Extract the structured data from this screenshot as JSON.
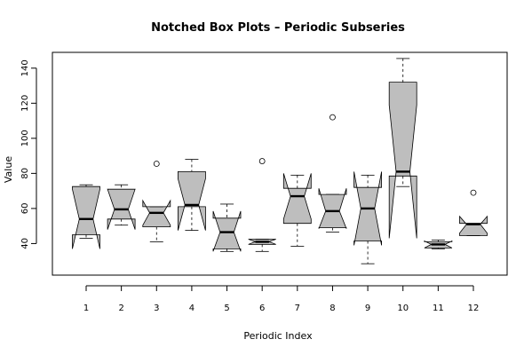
{
  "chart_data": {
    "type": "box",
    "variant": "notched",
    "title": "Notched Box Plots – Periodic Subseries",
    "xlabel": "Periodic Index",
    "ylabel": "Value",
    "categories": [
      "1",
      "2",
      "3",
      "4",
      "5",
      "6",
      "7",
      "8",
      "9",
      "10",
      "11",
      "12"
    ],
    "y_ticks": [
      40,
      60,
      80,
      100,
      120,
      140
    ],
    "ylim": [
      22,
      149
    ],
    "colors": {
      "box_fill": "#bebebe",
      "stroke": "#000000",
      "background": "#ffffff"
    },
    "boxes": [
      {
        "category": "1",
        "whisker_low": 43.0,
        "q1": 45.0,
        "median": 54.0,
        "q3": 72.5,
        "whisker_high": 73.5,
        "notch_low": 37.0,
        "notch_high": 71.0,
        "outliers": []
      },
      {
        "category": "2",
        "whisker_low": 50.5,
        "q1": 54.0,
        "median": 59.5,
        "q3": 71.0,
        "whisker_high": 73.5,
        "notch_low": 48.0,
        "notch_high": 71.0,
        "outliers": []
      },
      {
        "category": "3",
        "whisker_low": 41.0,
        "q1": 49.5,
        "median": 57.5,
        "q3": 61.0,
        "whisker_high": 61.0,
        "notch_low": 50.5,
        "notch_high": 64.5,
        "outliers": [
          85.5
        ]
      },
      {
        "category": "4",
        "whisker_low": 47.5,
        "q1": 61.0,
        "median": 62.0,
        "q3": 81.0,
        "whisker_high": 88.0,
        "notch_low": 47.5,
        "notch_high": 77.0,
        "outliers": []
      },
      {
        "category": "5",
        "whisker_low": 35.5,
        "q1": 37.0,
        "median": 46.5,
        "q3": 54.5,
        "whisker_high": 62.5,
        "notch_low": 35.5,
        "notch_high": 58.5,
        "outliers": []
      },
      {
        "category": "6",
        "whisker_low": 35.5,
        "q1": 39.5,
        "median": 41.0,
        "q3": 42.5,
        "whisker_high": 42.5,
        "notch_low": 39.5,
        "notch_high": 42.5,
        "outliers": [
          87.0
        ]
      },
      {
        "category": "7",
        "whisker_low": 38.5,
        "q1": 51.5,
        "median": 67.0,
        "q3": 71.5,
        "whisker_high": 79.0,
        "notch_low": 54.0,
        "notch_high": 80.0,
        "outliers": []
      },
      {
        "category": "8",
        "whisker_low": 46.5,
        "q1": 49.0,
        "median": 58.5,
        "q3": 68.0,
        "whisker_high": 68.0,
        "notch_low": 48.5,
        "notch_high": 71.5,
        "outliers": [
          112.0
        ]
      },
      {
        "category": "9",
        "whisker_low": 28.5,
        "q1": 41.5,
        "median": 60.0,
        "q3": 72.0,
        "whisker_high": 79.0,
        "notch_low": 39.0,
        "notch_high": 81.0,
        "outliers": []
      },
      {
        "category": "10",
        "whisker_low": 72.5,
        "q1": 78.5,
        "median": 81.0,
        "q3": 132.0,
        "whisker_high": 145.5,
        "notch_low": 43.0,
        "notch_high": 119.0,
        "outliers": []
      },
      {
        "category": "11",
        "whisker_low": 37.0,
        "q1": 37.5,
        "median": 39.5,
        "q3": 41.0,
        "whisker_high": 42.0,
        "notch_low": 37.5,
        "notch_high": 41.5,
        "outliers": []
      },
      {
        "category": "12",
        "whisker_low": 44.5,
        "q1": 44.5,
        "median": 51.0,
        "q3": 51.5,
        "whisker_high": 51.5,
        "notch_low": 46.0,
        "notch_high": 55.5,
        "outliers": [
          69.0
        ]
      }
    ]
  }
}
